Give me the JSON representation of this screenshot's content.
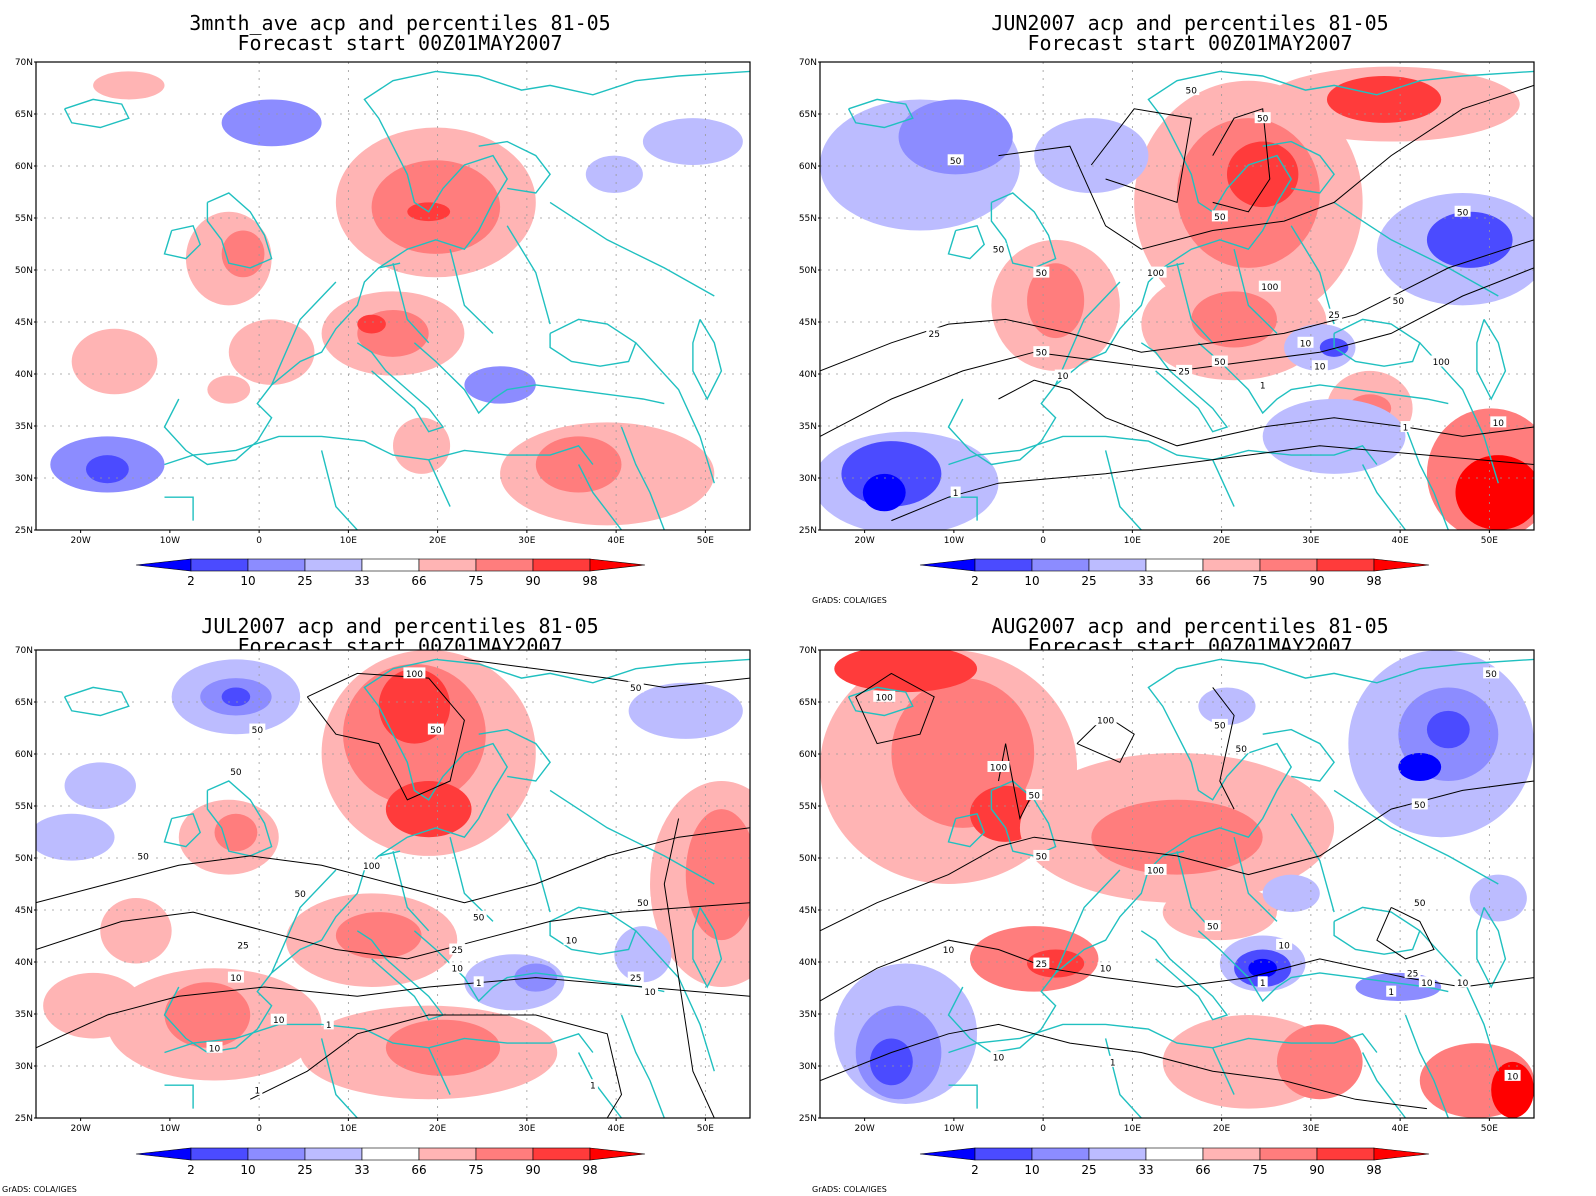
{
  "colors": {
    "pct_2": "#0000ff",
    "pct_10": "#4b4bff",
    "pct_25": "#8c8cff",
    "pct_33": "#bcbcff",
    "pct_66": "#ffb4b4",
    "pct_75": "#ff7d7d",
    "pct_90": "#ff3b3b",
    "pct_98": "#ff0000",
    "coast": "#20c0c0",
    "contour": "#000000",
    "grid": "#999999"
  },
  "axes": {
    "lat_labels": [
      "70N",
      "65N",
      "60N",
      "55N",
      "50N",
      "45N",
      "40N",
      "35N",
      "30N",
      "25N"
    ],
    "lon_labels": [
      "20W",
      "10W",
      "0",
      "10E",
      "20E",
      "30E",
      "40E",
      "50E"
    ]
  },
  "colorbar": {
    "labels": [
      "2",
      "10",
      "25",
      "33",
      "66",
      "75",
      "90",
      "98"
    ]
  },
  "credit": "GrADS: COLA/IGES",
  "panels": [
    {
      "title1": "3mnth_ave acp and percentiles 81-05",
      "title2": "Forecast start 00Z01MAY2007",
      "has_credit": false,
      "contour_labels": []
    },
    {
      "title1": "JUN2007 acp and percentiles 81-05",
      "title2": "Forecast start 00Z01MAY2007",
      "has_credit": true,
      "contour_labels": [
        "50",
        "50",
        "50",
        "50",
        "50",
        "50",
        "50",
        "100",
        "100",
        "100",
        "25",
        "50",
        "10",
        "25",
        "10",
        "25",
        "1",
        "10",
        "1",
        "10",
        "1",
        "50",
        "50"
      ]
    },
    {
      "title1": "JUL2007 acp and percentiles 81-05",
      "title2": "Forecast start 00Z01MAY2007",
      "has_credit": true,
      "contour_labels": [
        "100",
        "50",
        "50",
        "50",
        "50",
        "50",
        "100",
        "50",
        "25",
        "25",
        "10",
        "10",
        "50",
        "10",
        "25",
        "10",
        "10",
        "1",
        "10",
        "1",
        "1",
        "1",
        "50"
      ]
    },
    {
      "title1": "AUG2007 acp and percentiles 81-05",
      "title2": "Forecast start 00Z01MAY2007",
      "has_credit": true,
      "contour_labels": [
        "100",
        "100",
        "50",
        "50",
        "50",
        "100",
        "50",
        "100",
        "50",
        "50",
        "10",
        "25",
        "10",
        "10",
        "1",
        "25",
        "10",
        "10",
        "1",
        "10",
        "1",
        "50",
        "50",
        "10"
      ]
    }
  ]
}
